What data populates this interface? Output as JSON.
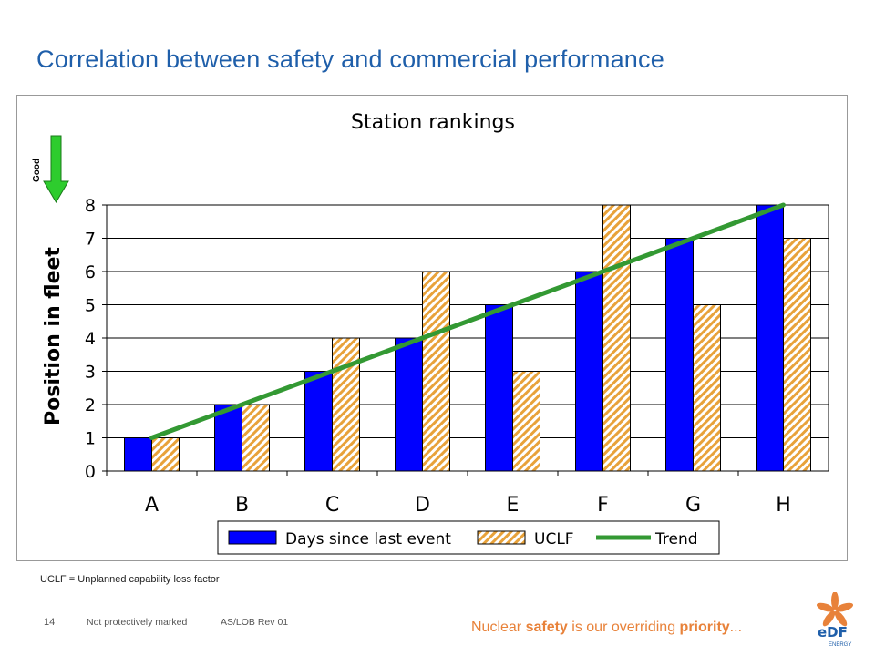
{
  "slide": {
    "title": "Correlation between safety and commercial performance",
    "footnote": "UCLF = Unplanned capability loss factor",
    "page_number": "14",
    "marking": "Not protectively marked",
    "doc_ref": "AS/LOB Rev 01",
    "tagline": {
      "pre": "Nuclear ",
      "safety": "safety",
      "mid": " is our overriding ",
      "priority": "priority",
      "post": "..."
    },
    "logo_text": "eDF",
    "logo_sub": "ENERGY"
  },
  "colors": {
    "title": "#1f5faa",
    "days_bar": "#0000ff",
    "uclf_stripe": "#e8a23a",
    "trend": "#339933",
    "arrow": "#2ecc2e",
    "accent": "#e8823a"
  },
  "chart_data": {
    "type": "bar",
    "title": "Station rankings",
    "ylabel": "Position in fleet",
    "xlabel": "",
    "arrow_label": "Good",
    "categories": [
      "A",
      "B",
      "C",
      "D",
      "E",
      "F",
      "G",
      "H"
    ],
    "ylim": [
      0,
      8
    ],
    "yticks": [
      "0",
      "1",
      "2",
      "3",
      "4",
      "5",
      "6",
      "7",
      "8"
    ],
    "grid": true,
    "legend_position": "bottom",
    "series": [
      {
        "name": "Days since last event",
        "values": [
          1,
          2,
          3,
          4,
          5,
          6,
          7,
          8
        ]
      },
      {
        "name": "UCLF",
        "values": [
          1,
          2,
          4,
          6,
          3,
          8,
          5,
          7
        ]
      }
    ],
    "trend": {
      "name": "Trend",
      "from": [
        1,
        1
      ],
      "to": [
        8,
        8
      ]
    }
  }
}
